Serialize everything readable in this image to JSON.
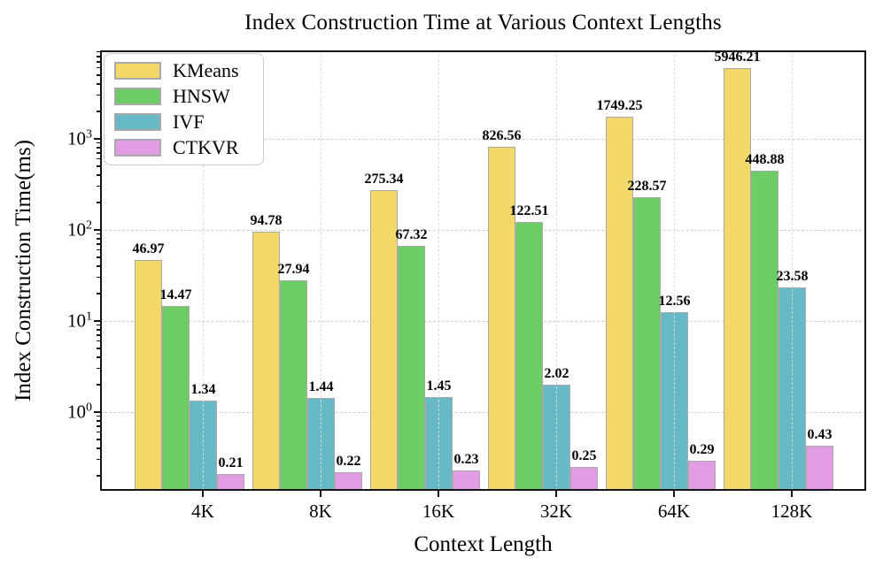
{
  "chart_data": {
    "type": "bar",
    "title": "Index Construction Time at Various Context Lengths",
    "xlabel": "Context Length",
    "ylabel": "Index Construction Time(ms)",
    "yscale": "log",
    "ylim": [
      0.137,
      9350
    ],
    "grid": "dashed, both axes",
    "legend_position": "upper left",
    "categories": [
      "4K",
      "8K",
      "16K",
      "32K",
      "64K",
      "128K"
    ],
    "series": [
      {
        "name": "KMeans",
        "color": "#F2D868",
        "values": [
          46.97,
          94.78,
          275.34,
          826.56,
          1749.25,
          5946.21
        ]
      },
      {
        "name": "HNSW",
        "color": "#6CCD66",
        "values": [
          14.47,
          27.94,
          67.32,
          122.51,
          228.57,
          448.88
        ]
      },
      {
        "name": "IVF",
        "color": "#67B9C7",
        "values": [
          1.34,
          1.44,
          1.45,
          2.02,
          12.56,
          23.58
        ]
      },
      {
        "name": "CTKVR",
        "color": "#E19CE3",
        "values": [
          0.21,
          0.22,
          0.23,
          0.25,
          0.29,
          0.43
        ]
      }
    ],
    "bar_edge_color": "#a9a9a9",
    "value_labels_shown": true,
    "ytick_labels": [
      "10^0",
      "10^1",
      "10^2",
      "10^3"
    ],
    "ytick_exponents": [
      0,
      1,
      2,
      3
    ]
  },
  "colors": {
    "background": "#ffffff",
    "grid": "#cdcdcd",
    "axis": "#141414",
    "text": "#000000"
  }
}
